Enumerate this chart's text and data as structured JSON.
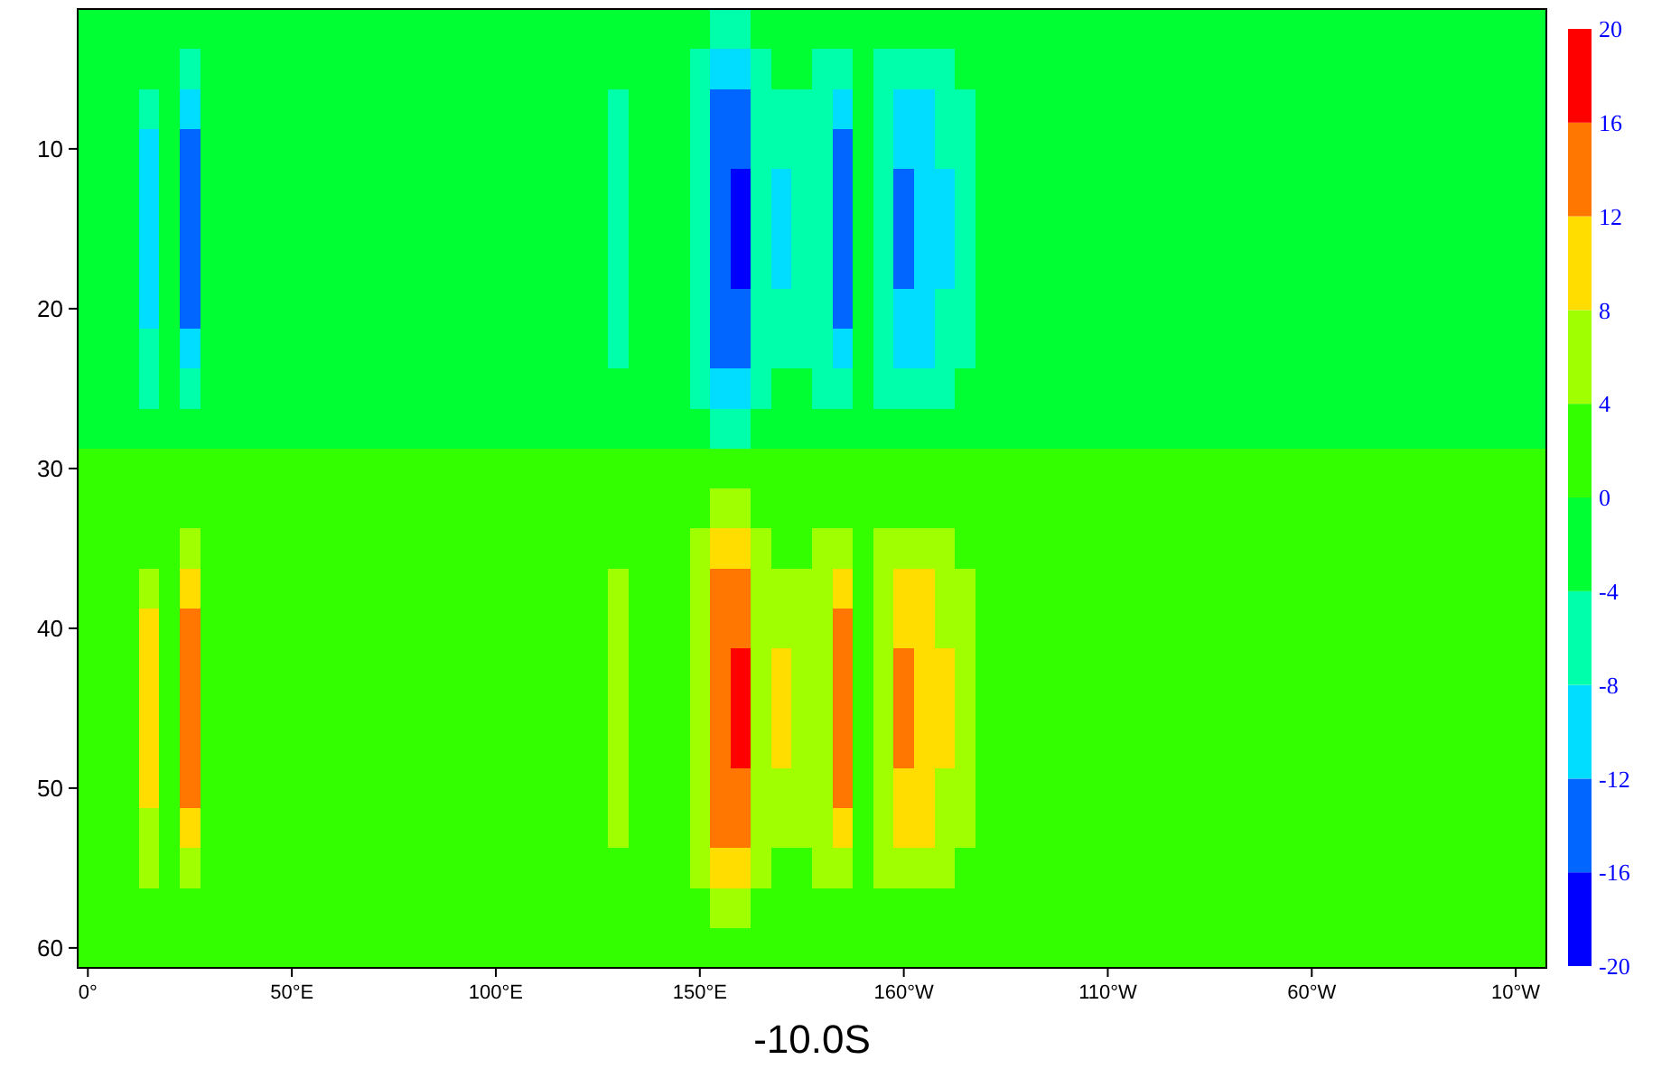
{
  "chart_data": {
    "type": "heatmap",
    "xlabel": "-10.0S",
    "categories": [
      "0°",
      null,
      null,
      null,
      null,
      null,
      null,
      null,
      null,
      null,
      "50°E",
      null,
      null,
      null,
      null,
      null,
      null,
      null,
      null,
      null,
      "100°E",
      null,
      null,
      null,
      null,
      null,
      null,
      null,
      null,
      null,
      "150°E",
      null,
      null,
      null,
      null,
      null,
      null,
      null,
      null,
      null,
      "160°W",
      null,
      null,
      null,
      null,
      null,
      null,
      null,
      null,
      null,
      "110°W",
      null,
      null,
      null,
      null,
      null,
      null,
      null,
      null,
      null,
      "60°W",
      null,
      null,
      null,
      null,
      null,
      null,
      null,
      null,
      null,
      "10°W",
      null
    ],
    "y_categories": [
      null,
      null,
      null,
      "10",
      null,
      null,
      null,
      "20",
      null,
      null,
      null,
      "30",
      null,
      null,
      null,
      "40",
      null,
      null,
      null,
      "50",
      null,
      null,
      null,
      "60"
    ],
    "clim": [
      -20,
      20
    ],
    "cticks": [
      -20,
      -16,
      -12,
      -8,
      -4,
      0,
      4,
      8,
      12,
      16,
      20
    ],
    "colors": [
      "#0000ff",
      "#0066ff",
      "#00ddff",
      "#00ffaa",
      "#00ff33",
      "#33ff00",
      "#a0ff00",
      "#ffdd00",
      "#ff7700",
      "#ff0000"
    ],
    "cells": [
      [
        -2,
        -2,
        -2,
        -2,
        -2,
        -2,
        -2,
        -2,
        -2,
        -2,
        -2,
        -2,
        -2,
        -2,
        -2,
        -2,
        -2,
        -2,
        -2,
        -2,
        -2,
        -2,
        -2,
        -2,
        -2,
        -2,
        -2,
        -2,
        -2,
        -2,
        -2,
        -6,
        -6,
        -2,
        -2,
        -2,
        -2,
        -2,
        -2,
        -2,
        -2,
        -2,
        -2,
        -2,
        -2,
        -2,
        -2,
        -2,
        -2,
        -2,
        -2,
        -2,
        -2,
        -2,
        -2,
        -2,
        -2,
        -2,
        -2,
        -2,
        -2,
        -2,
        -2,
        -2,
        -2,
        -2,
        -2,
        -2,
        -2,
        -2,
        -2,
        -2
      ],
      [
        -2,
        -2,
        -2,
        -2,
        -2,
        -6,
        -2,
        -2,
        -2,
        -2,
        -2,
        -2,
        -2,
        -2,
        -2,
        -2,
        -2,
        -2,
        -2,
        -2,
        -2,
        -2,
        -2,
        -2,
        -2,
        -2,
        -2,
        -2,
        -2,
        -2,
        -6,
        -10,
        -10,
        -6,
        -2,
        -2,
        -6,
        -6,
        -2,
        -6,
        -6,
        -6,
        -6,
        -2,
        -2,
        -2,
        -2,
        -2,
        -2,
        -2,
        -2,
        -2,
        -2,
        -2,
        -2,
        -2,
        -2,
        -2,
        -2,
        -2,
        -2,
        -2,
        -2,
        -2,
        -2,
        -2,
        -2,
        -2,
        -2,
        -2,
        -2,
        -2
      ],
      [
        -2,
        -2,
        -2,
        -6,
        -2,
        -10,
        -2,
        -2,
        -2,
        -2,
        -2,
        -2,
        -2,
        -2,
        -2,
        -2,
        -2,
        -2,
        -2,
        -2,
        -2,
        -2,
        -2,
        -2,
        -2,
        -2,
        -6,
        -2,
        -2,
        -2,
        -6,
        -14,
        -14,
        -6,
        -6,
        -6,
        -6,
        -10,
        -2,
        -6,
        -10,
        -10,
        -6,
        -6,
        -2,
        -2,
        -2,
        -2,
        -2,
        -2,
        -2,
        -2,
        -2,
        -2,
        -2,
        -2,
        -2,
        -2,
        -2,
        -2,
        -2,
        -2,
        -2,
        -2,
        -2,
        -2,
        -2,
        -2,
        -2,
        -2,
        -2,
        -2
      ],
      [
        -2,
        -2,
        -2,
        -10,
        -2,
        -14,
        -2,
        -2,
        -2,
        -2,
        -2,
        -2,
        -2,
        -2,
        -2,
        -2,
        -2,
        -2,
        -2,
        -2,
        -2,
        -2,
        -2,
        -2,
        -2,
        -2,
        -6,
        -2,
        -2,
        -2,
        -6,
        -14,
        -14,
        -6,
        -6,
        -6,
        -6,
        -14,
        -2,
        -6,
        -10,
        -10,
        -6,
        -6,
        -2,
        -2,
        -2,
        -2,
        -2,
        -2,
        -2,
        -2,
        -2,
        -2,
        -2,
        -2,
        -2,
        -2,
        -2,
        -2,
        -2,
        -2,
        -2,
        -2,
        -2,
        -2,
        -2,
        -2,
        -2,
        -2,
        -2,
        -2
      ],
      [
        -2,
        -2,
        -2,
        -10,
        -2,
        -14,
        -2,
        -2,
        -2,
        -2,
        -2,
        -2,
        -2,
        -2,
        -2,
        -2,
        -2,
        -2,
        -2,
        -2,
        -2,
        -2,
        -2,
        -2,
        -2,
        -2,
        -6,
        -2,
        -2,
        -2,
        -6,
        -14,
        -18,
        -6,
        -10,
        -6,
        -6,
        -14,
        -2,
        -6,
        -14,
        -10,
        -10,
        -6,
        -2,
        -2,
        -2,
        -2,
        -2,
        -2,
        -2,
        -2,
        -2,
        -2,
        -2,
        -2,
        -2,
        -2,
        -2,
        -2,
        -2,
        -2,
        -2,
        -2,
        -2,
        -2,
        -2,
        -2,
        -2,
        -2,
        -2,
        -2
      ],
      [
        -2,
        -2,
        -2,
        -10,
        -2,
        -14,
        -2,
        -2,
        -2,
        -2,
        -2,
        -2,
        -2,
        -2,
        -2,
        -2,
        -2,
        -2,
        -2,
        -2,
        -2,
        -2,
        -2,
        -2,
        -2,
        -2,
        -6,
        -2,
        -2,
        -2,
        -6,
        -14,
        -18,
        -6,
        -10,
        -6,
        -6,
        -14,
        -2,
        -6,
        -14,
        -10,
        -10,
        -6,
        -2,
        -2,
        -2,
        -2,
        -2,
        -2,
        -2,
        -2,
        -2,
        -2,
        -2,
        -2,
        -2,
        -2,
        -2,
        -2,
        -2,
        -2,
        -2,
        -2,
        -2,
        -2,
        -2,
        -2,
        -2,
        -2,
        -2,
        -2
      ],
      [
        -2,
        -2,
        -2,
        -10,
        -2,
        -14,
        -2,
        -2,
        -2,
        -2,
        -2,
        -2,
        -2,
        -2,
        -2,
        -2,
        -2,
        -2,
        -2,
        -2,
        -2,
        -2,
        -2,
        -2,
        -2,
        -2,
        -6,
        -2,
        -2,
        -2,
        -6,
        -14,
        -18,
        -6,
        -10,
        -6,
        -6,
        -14,
        -2,
        -6,
        -14,
        -10,
        -10,
        -6,
        -2,
        -2,
        -2,
        -2,
        -2,
        -2,
        -2,
        -2,
        -2,
        -2,
        -2,
        -2,
        -2,
        -2,
        -2,
        -2,
        -2,
        -2,
        -2,
        -2,
        -2,
        -2,
        -2,
        -2,
        -2,
        -2,
        -2,
        -2
      ],
      [
        -2,
        -2,
        -2,
        -10,
        -2,
        -14,
        -2,
        -2,
        -2,
        -2,
        -2,
        -2,
        -2,
        -2,
        -2,
        -2,
        -2,
        -2,
        -2,
        -2,
        -2,
        -2,
        -2,
        -2,
        -2,
        -2,
        -6,
        -2,
        -2,
        -2,
        -6,
        -14,
        -14,
        -6,
        -6,
        -6,
        -6,
        -14,
        -2,
        -6,
        -10,
        -10,
        -6,
        -6,
        -2,
        -2,
        -2,
        -2,
        -2,
        -2,
        -2,
        -2,
        -2,
        -2,
        -2,
        -2,
        -2,
        -2,
        -2,
        -2,
        -2,
        -2,
        -2,
        -2,
        -2,
        -2,
        -2,
        -2,
        -2,
        -2,
        -2,
        -2
      ],
      [
        -2,
        -2,
        -2,
        -6,
        -2,
        -10,
        -2,
        -2,
        -2,
        -2,
        -2,
        -2,
        -2,
        -2,
        -2,
        -2,
        -2,
        -2,
        -2,
        -2,
        -2,
        -2,
        -2,
        -2,
        -2,
        -2,
        -6,
        -2,
        -2,
        -2,
        -6,
        -14,
        -14,
        -6,
        -6,
        -6,
        -6,
        -10,
        -2,
        -6,
        -10,
        -10,
        -6,
        -6,
        -2,
        -2,
        -2,
        -2,
        -2,
        -2,
        -2,
        -2,
        -2,
        -2,
        -2,
        -2,
        -2,
        -2,
        -2,
        -2,
        -2,
        -2,
        -2,
        -2,
        -2,
        -2,
        -2,
        -2,
        -2,
        -2,
        -2,
        -2
      ],
      [
        -2,
        -2,
        -2,
        -6,
        -2,
        -6,
        -2,
        -2,
        -2,
        -2,
        -2,
        -2,
        -2,
        -2,
        -2,
        -2,
        -2,
        -2,
        -2,
        -2,
        -2,
        -2,
        -2,
        -2,
        -2,
        -2,
        -2,
        -2,
        -2,
        -2,
        -6,
        -10,
        -10,
        -6,
        -2,
        -2,
        -6,
        -6,
        -2,
        -6,
        -6,
        -6,
        -6,
        -2,
        -2,
        -2,
        -2,
        -2,
        -2,
        -2,
        -2,
        -2,
        -2,
        -2,
        -2,
        -2,
        -2,
        -2,
        -2,
        -2,
        -2,
        -2,
        -2,
        -2,
        -2,
        -2,
        -2,
        -2,
        -2,
        -2,
        -2,
        -2
      ],
      [
        -2,
        -2,
        -2,
        -2,
        -2,
        -2,
        -2,
        -2,
        -2,
        -2,
        -2,
        -2,
        -2,
        -2,
        -2,
        -2,
        -2,
        -2,
        -2,
        -2,
        -2,
        -2,
        -2,
        -2,
        -2,
        -2,
        -2,
        -2,
        -2,
        -2,
        -2,
        -6,
        -6,
        -2,
        -2,
        -2,
        -2,
        -2,
        -2,
        -2,
        -2,
        -2,
        -2,
        -2,
        -2,
        -2,
        -2,
        -2,
        -2,
        -2,
        -2,
        -2,
        -2,
        -2,
        -2,
        -2,
        -2,
        -2,
        -2,
        -2,
        -2,
        -2,
        -2,
        -2,
        -2,
        -2,
        -2,
        -2,
        -2,
        -2,
        -2,
        -2
      ],
      [
        2,
        2,
        2,
        2,
        2,
        2,
        2,
        2,
        2,
        2,
        2,
        2,
        2,
        2,
        2,
        2,
        2,
        2,
        2,
        2,
        2,
        2,
        2,
        2,
        2,
        2,
        2,
        2,
        2,
        2,
        2,
        2,
        2,
        2,
        2,
        2,
        2,
        2,
        2,
        2,
        2,
        2,
        2,
        2,
        2,
        2,
        2,
        2,
        2,
        2,
        2,
        2,
        2,
        2,
        2,
        2,
        2,
        2,
        2,
        2,
        2,
        2,
        2,
        2,
        2,
        2,
        2,
        2,
        2,
        2,
        2,
        2
      ],
      [
        2,
        2,
        2,
        2,
        2,
        2,
        2,
        2,
        2,
        2,
        2,
        2,
        2,
        2,
        2,
        2,
        2,
        2,
        2,
        2,
        2,
        2,
        2,
        2,
        2,
        2,
        2,
        2,
        2,
        2,
        2,
        6,
        6,
        2,
        2,
        2,
        2,
        2,
        2,
        2,
        2,
        2,
        2,
        2,
        2,
        2,
        2,
        2,
        2,
        2,
        2,
        2,
        2,
        2,
        2,
        2,
        2,
        2,
        2,
        2,
        2,
        2,
        2,
        2,
        2,
        2,
        2,
        2,
        2,
        2,
        2,
        2
      ],
      [
        2,
        2,
        2,
        2,
        2,
        6,
        2,
        2,
        2,
        2,
        2,
        2,
        2,
        2,
        2,
        2,
        2,
        2,
        2,
        2,
        2,
        2,
        2,
        2,
        2,
        2,
        2,
        2,
        2,
        2,
        6,
        10,
        10,
        6,
        2,
        2,
        6,
        6,
        2,
        6,
        6,
        6,
        6,
        2,
        2,
        2,
        2,
        2,
        2,
        2,
        2,
        2,
        2,
        2,
        2,
        2,
        2,
        2,
        2,
        2,
        2,
        2,
        2,
        2,
        2,
        2,
        2,
        2,
        2,
        2,
        2,
        2
      ],
      [
        2,
        2,
        2,
        6,
        2,
        10,
        2,
        2,
        2,
        2,
        2,
        2,
        2,
        2,
        2,
        2,
        2,
        2,
        2,
        2,
        2,
        2,
        2,
        2,
        2,
        2,
        6,
        2,
        2,
        2,
        6,
        14,
        14,
        6,
        6,
        6,
        6,
        10,
        2,
        6,
        10,
        10,
        6,
        6,
        2,
        2,
        2,
        2,
        2,
        2,
        2,
        2,
        2,
        2,
        2,
        2,
        2,
        2,
        2,
        2,
        2,
        2,
        2,
        2,
        2,
        2,
        2,
        2,
        2,
        2,
        2,
        2
      ],
      [
        2,
        2,
        2,
        10,
        2,
        14,
        2,
        2,
        2,
        2,
        2,
        2,
        2,
        2,
        2,
        2,
        2,
        2,
        2,
        2,
        2,
        2,
        2,
        2,
        2,
        2,
        6,
        2,
        2,
        2,
        6,
        14,
        14,
        6,
        6,
        6,
        6,
        14,
        2,
        6,
        10,
        10,
        6,
        6,
        2,
        2,
        2,
        2,
        2,
        2,
        2,
        2,
        2,
        2,
        2,
        2,
        2,
        2,
        2,
        2,
        2,
        2,
        2,
        2,
        2,
        2,
        2,
        2,
        2,
        2,
        2,
        2
      ],
      [
        2,
        2,
        2,
        10,
        2,
        14,
        2,
        2,
        2,
        2,
        2,
        2,
        2,
        2,
        2,
        2,
        2,
        2,
        2,
        2,
        2,
        2,
        2,
        2,
        2,
        2,
        6,
        2,
        2,
        2,
        6,
        14,
        18,
        6,
        10,
        6,
        6,
        14,
        2,
        6,
        14,
        10,
        10,
        6,
        2,
        2,
        2,
        2,
        2,
        2,
        2,
        2,
        2,
        2,
        2,
        2,
        2,
        2,
        2,
        2,
        2,
        2,
        2,
        2,
        2,
        2,
        2,
        2,
        2,
        2,
        2,
        2
      ],
      [
        2,
        2,
        2,
        10,
        2,
        14,
        2,
        2,
        2,
        2,
        2,
        2,
        2,
        2,
        2,
        2,
        2,
        2,
        2,
        2,
        2,
        2,
        2,
        2,
        2,
        2,
        6,
        2,
        2,
        2,
        6,
        14,
        18,
        6,
        10,
        6,
        6,
        14,
        2,
        6,
        14,
        10,
        10,
        6,
        2,
        2,
        2,
        2,
        2,
        2,
        2,
        2,
        2,
        2,
        2,
        2,
        2,
        2,
        2,
        2,
        2,
        2,
        2,
        2,
        2,
        2,
        2,
        2,
        2,
        2,
        2,
        2
      ],
      [
        2,
        2,
        2,
        10,
        2,
        14,
        2,
        2,
        2,
        2,
        2,
        2,
        2,
        2,
        2,
        2,
        2,
        2,
        2,
        2,
        2,
        2,
        2,
        2,
        2,
        2,
        6,
        2,
        2,
        2,
        6,
        14,
        18,
        6,
        10,
        6,
        6,
        14,
        2,
        6,
        14,
        10,
        10,
        6,
        2,
        2,
        2,
        2,
        2,
        2,
        2,
        2,
        2,
        2,
        2,
        2,
        2,
        2,
        2,
        2,
        2,
        2,
        2,
        2,
        2,
        2,
        2,
        2,
        2,
        2,
        2,
        2
      ],
      [
        2,
        2,
        2,
        10,
        2,
        14,
        2,
        2,
        2,
        2,
        2,
        2,
        2,
        2,
        2,
        2,
        2,
        2,
        2,
        2,
        2,
        2,
        2,
        2,
        2,
        2,
        6,
        2,
        2,
        2,
        6,
        14,
        14,
        6,
        6,
        6,
        6,
        14,
        2,
        6,
        10,
        10,
        6,
        6,
        2,
        2,
        2,
        2,
        2,
        2,
        2,
        2,
        2,
        2,
        2,
        2,
        2,
        2,
        2,
        2,
        2,
        2,
        2,
        2,
        2,
        2,
        2,
        2,
        2,
        2,
        2,
        2
      ],
      [
        2,
        2,
        2,
        6,
        2,
        10,
        2,
        2,
        2,
        2,
        2,
        2,
        2,
        2,
        2,
        2,
        2,
        2,
        2,
        2,
        2,
        2,
        2,
        2,
        2,
        2,
        6,
        2,
        2,
        2,
        6,
        14,
        14,
        6,
        6,
        6,
        6,
        10,
        2,
        6,
        10,
        10,
        6,
        6,
        2,
        2,
        2,
        2,
        2,
        2,
        2,
        2,
        2,
        2,
        2,
        2,
        2,
        2,
        2,
        2,
        2,
        2,
        2,
        2,
        2,
        2,
        2,
        2,
        2,
        2,
        2,
        2
      ],
      [
        2,
        2,
        2,
        6,
        2,
        6,
        2,
        2,
        2,
        2,
        2,
        2,
        2,
        2,
        2,
        2,
        2,
        2,
        2,
        2,
        2,
        2,
        2,
        2,
        2,
        2,
        2,
        2,
        2,
        2,
        6,
        10,
        10,
        6,
        2,
        2,
        6,
        6,
        2,
        6,
        6,
        6,
        6,
        2,
        2,
        2,
        2,
        2,
        2,
        2,
        2,
        2,
        2,
        2,
        2,
        2,
        2,
        2,
        2,
        2,
        2,
        2,
        2,
        2,
        2,
        2,
        2,
        2,
        2,
        2,
        2,
        2
      ],
      [
        2,
        2,
        2,
        2,
        2,
        2,
        2,
        2,
        2,
        2,
        2,
        2,
        2,
        2,
        2,
        2,
        2,
        2,
        2,
        2,
        2,
        2,
        2,
        2,
        2,
        2,
        2,
        2,
        2,
        2,
        2,
        6,
        6,
        2,
        2,
        2,
        2,
        2,
        2,
        2,
        2,
        2,
        2,
        2,
        2,
        2,
        2,
        2,
        2,
        2,
        2,
        2,
        2,
        2,
        2,
        2,
        2,
        2,
        2,
        2,
        2,
        2,
        2,
        2,
        2,
        2,
        2,
        2,
        2,
        2,
        2,
        2
      ],
      [
        2,
        2,
        2,
        2,
        2,
        2,
        2,
        2,
        2,
        2,
        2,
        2,
        2,
        2,
        2,
        2,
        2,
        2,
        2,
        2,
        2,
        2,
        2,
        2,
        2,
        2,
        2,
        2,
        2,
        2,
        2,
        2,
        2,
        2,
        2,
        2,
        2,
        2,
        2,
        2,
        2,
        2,
        2,
        2,
        2,
        2,
        2,
        2,
        2,
        2,
        2,
        2,
        2,
        2,
        2,
        2,
        2,
        2,
        2,
        2,
        2,
        2,
        2,
        2,
        2,
        2,
        2,
        2,
        2,
        2,
        2,
        2
      ]
    ]
  }
}
